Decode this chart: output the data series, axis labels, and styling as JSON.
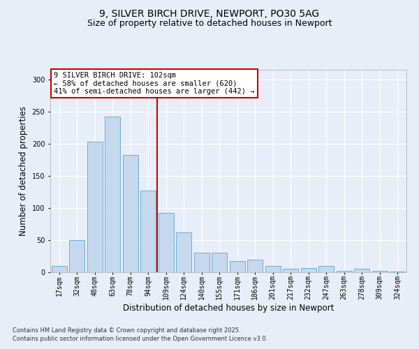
{
  "title1": "9, SILVER BIRCH DRIVE, NEWPORT, PO30 5AG",
  "title2": "Size of property relative to detached houses in Newport",
  "xlabel": "Distribution of detached houses by size in Newport",
  "ylabel": "Number of detached properties",
  "bins": [
    "17sqm",
    "32sqm",
    "48sqm",
    "63sqm",
    "78sqm",
    "94sqm",
    "109sqm",
    "124sqm",
    "140sqm",
    "155sqm",
    "171sqm",
    "186sqm",
    "201sqm",
    "217sqm",
    "232sqm",
    "247sqm",
    "263sqm",
    "278sqm",
    "309sqm",
    "324sqm"
  ],
  "values": [
    10,
    50,
    203,
    242,
    183,
    127,
    92,
    62,
    30,
    30,
    17,
    20,
    10,
    5,
    7,
    10,
    2,
    5,
    2,
    1
  ],
  "bar_color": "#c5d8ed",
  "bar_edge_color": "#6aaed6",
  "vline_color": "#cc0000",
  "annotation_text": "9 SILVER BIRCH DRIVE: 102sqm\n← 58% of detached houses are smaller (620)\n41% of semi-detached houses are larger (442) →",
  "annotation_box_color": "#cc0000",
  "background_color": "#e8eef8",
  "grid_color": "#ffffff",
  "footnote1": "Contains HM Land Registry data © Crown copyright and database right 2025.",
  "footnote2": "Contains public sector information licensed under the Open Government Licence v3.0.",
  "ylim": [
    0,
    315
  ],
  "yticks": [
    0,
    50,
    100,
    150,
    200,
    250,
    300
  ],
  "title_fontsize": 10,
  "subtitle_fontsize": 9,
  "axis_label_fontsize": 8.5,
  "tick_fontsize": 7,
  "annotation_fontsize": 7.5,
  "footnote_fontsize": 6
}
